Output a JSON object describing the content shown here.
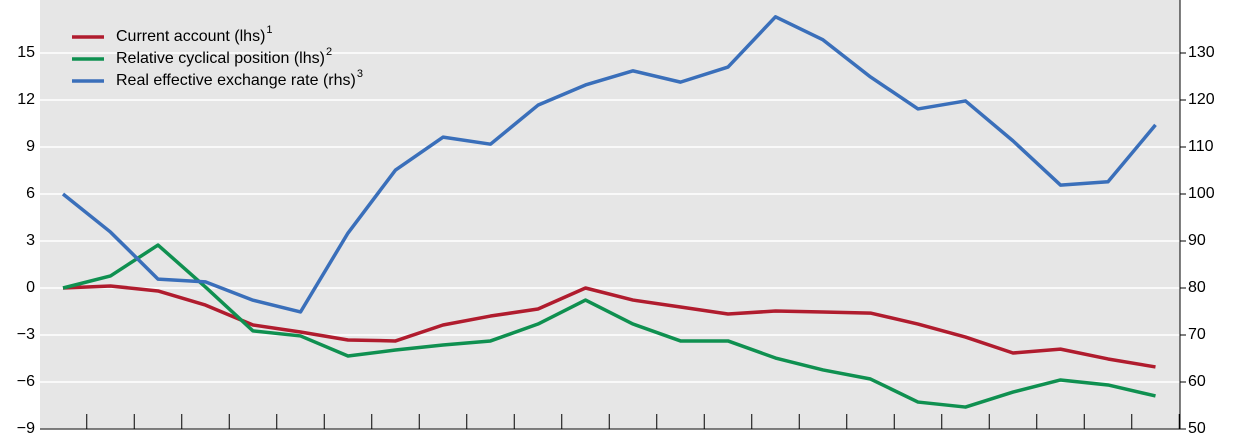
{
  "chart_data": {
    "type": "line",
    "categories": [
      null,
      null,
      null,
      null,
      null,
      null,
      null,
      null,
      null,
      null,
      null,
      null,
      null,
      null,
      null,
      null,
      null,
      null,
      null,
      null,
      null,
      null,
      null,
      null
    ],
    "series": [
      {
        "name": "Current account (lhs)",
        "footnote": "1",
        "color": "#b01c2e",
        "values": [
          0,
          0.13,
          -0.19,
          -1.09,
          -2.36,
          -2.81,
          -3.32,
          -3.38,
          -2.36,
          -1.79,
          -1.34,
          0,
          -0.77,
          -1.21,
          -1.66,
          -1.47,
          -1.53,
          -1.6,
          -2.3,
          -3.13,
          -4.15,
          -3.9,
          -4.53,
          -5.04
        ]
      },
      {
        "name": "Relative cyclical position (lhs)",
        "footnote": "2",
        "color": "#0f9050",
        "values": [
          0,
          0.77,
          2.74,
          0.06,
          -2.74,
          -3.06,
          -4.34,
          -3.96,
          -3.64,
          -3.38,
          -2.3,
          -0.77,
          -2.3,
          -3.38,
          -3.38,
          -4.47,
          -5.23,
          -5.81,
          -7.28,
          -7.6,
          -6.64,
          -5.87,
          -6.19,
          -6.89
        ]
      },
      {
        "name": "Real effective exchange rate (rhs)",
        "footnote": "3",
        "color": "#3a6fba",
        "axis": "y2",
        "values": [
          100,
          91.9,
          81.9,
          81.3,
          77.4,
          74.9,
          91.7,
          105.1,
          112.1,
          110.6,
          118.9,
          123.2,
          126.2,
          123.8,
          127,
          137.7,
          132.8,
          124.9,
          118.1,
          119.8,
          111.3,
          101.9,
          102.6,
          114.7
        ]
      }
    ],
    "ylim": [
      -9,
      18
    ],
    "yticks": [
      {
        "value": -9,
        "label": "−9"
      },
      {
        "value": -6,
        "label": "−6"
      },
      {
        "value": -3,
        "label": "−3"
      },
      0,
      3,
      6,
      9,
      12,
      15
    ],
    "y2lim": [
      50,
      140
    ],
    "y2ticks": [
      50,
      60,
      70,
      80,
      90,
      100,
      110,
      120,
      130
    ],
    "grid": true,
    "legend": "top-left"
  }
}
